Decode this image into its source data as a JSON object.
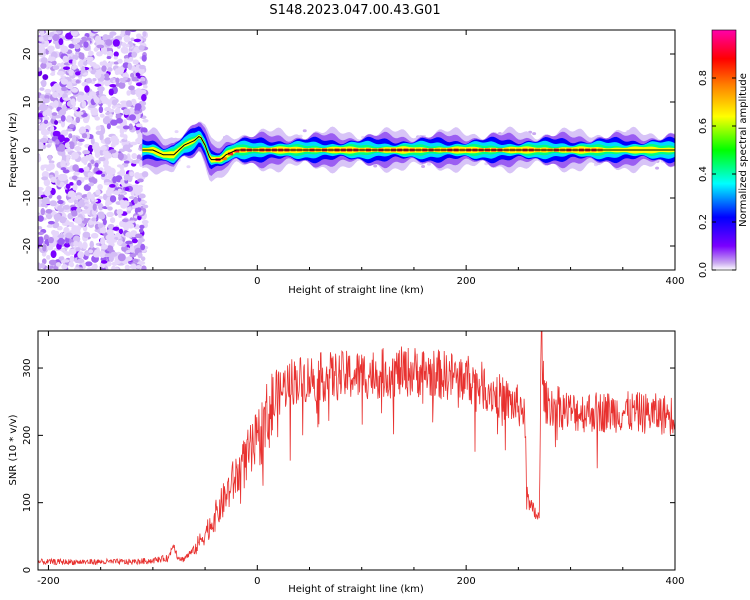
{
  "title": "S148.2023.047.00.43.G01",
  "chart_data": [
    {
      "type": "heatmap",
      "xlabel": "Height of straight line (km)",
      "ylabel": "Frequency (Hz)",
      "xlim": [
        -210,
        400
      ],
      "ylim": [
        -25,
        25
      ],
      "xticks": [
        -200,
        0,
        200,
        400
      ],
      "yticks": [
        -20,
        -10,
        0,
        10,
        20
      ],
      "grid": false,
      "colorbar": {
        "label": "Normalized spectral amplitude",
        "range": [
          0,
          1
        ],
        "ticks": [
          "0.0",
          "0.2",
          "0.4",
          "0.6",
          "0.8"
        ],
        "tick_values": [
          0,
          0.2,
          0.4,
          0.6,
          0.8
        ],
        "colormap": [
          "#ffffff",
          "#c9a8f0",
          "#7a00ff",
          "#0000ff",
          "#00ffff",
          "#00ff00",
          "#ffff00",
          "#ff8000",
          "#ff0000",
          "#ff00ff"
        ]
      },
      "noise_region": {
        "x": [
          -210,
          -97
        ],
        "y": [
          -25,
          25
        ],
        "note_color": "#7a00ff"
      },
      "ridge": {
        "x": [
          -110,
          -100,
          -90,
          -80,
          -75,
          -70,
          -60,
          -55,
          -50,
          -45,
          -40,
          -35,
          -30,
          -20,
          0,
          50,
          100,
          150,
          200,
          250,
          300,
          350,
          400
        ],
        "y": [
          0,
          0,
          -1,
          -1,
          0,
          1,
          2,
          3,
          1,
          -2,
          -2,
          -2,
          -1,
          0,
          0,
          0,
          0,
          0,
          0,
          0,
          0,
          0,
          0
        ]
      }
    },
    {
      "type": "line",
      "xlabel": "Height of straight line (km)",
      "ylabel": "SNR (10 * v/v)",
      "xlim": [
        -210,
        400
      ],
      "ylim": [
        0,
        355
      ],
      "xticks": [
        -200,
        0,
        200,
        400
      ],
      "yticks": [
        0,
        100,
        200,
        300
      ],
      "grid": false,
      "color": "#e8312f",
      "series": [
        {
          "x": [
            -210,
            -180,
            -150,
            -120,
            -100,
            -85,
            -80,
            -77,
            -72,
            -60,
            -40,
            -20,
            0,
            10,
            20,
            30,
            50,
            100,
            150,
            200,
            220,
            240,
            255,
            260,
            263,
            266,
            270,
            272,
            275,
            300,
            350,
            400
          ],
          "y": [
            12,
            12,
            12,
            12,
            14,
            18,
            40,
            22,
            15,
            30,
            80,
            140,
            190,
            230,
            260,
            280,
            285,
            290,
            295,
            285,
            270,
            250,
            240,
            95,
            90,
            85,
            75,
            350,
            250,
            235,
            235,
            230
          ]
        }
      ]
    }
  ]
}
